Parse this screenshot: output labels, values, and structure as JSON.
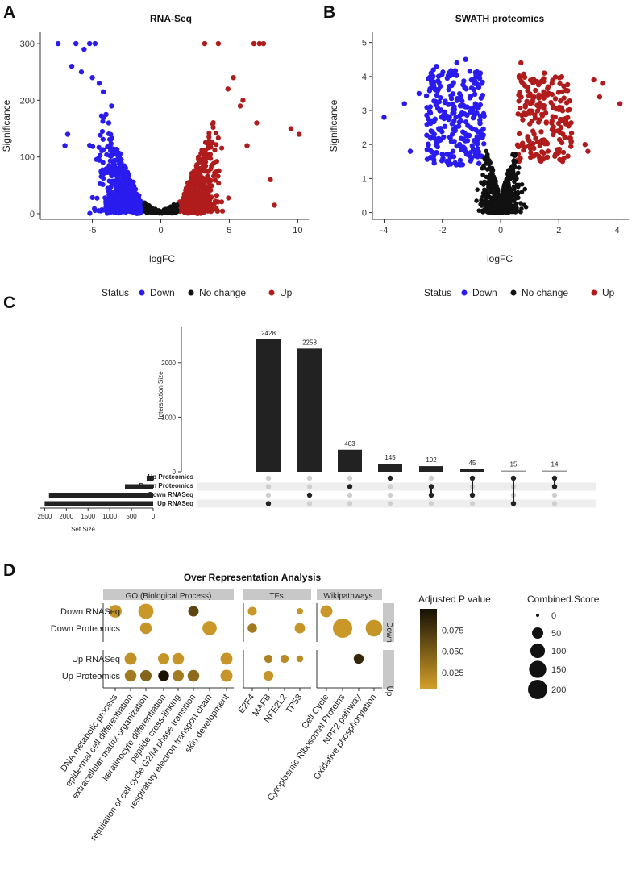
{
  "panels": {
    "A": {
      "label": "A"
    },
    "B": {
      "label": "B"
    },
    "C": {
      "label": "C"
    },
    "D": {
      "label": "D"
    }
  },
  "colors": {
    "down": "#2a1bef",
    "nochange": "#111111",
    "up": "#b01c1c"
  },
  "status_legend": {
    "title": "Status",
    "items": [
      "Down",
      "No change",
      "Up"
    ]
  },
  "chart_data": [
    {
      "id": "rnaseq",
      "type": "scatter",
      "title": "RNA-Seq",
      "xlabel": "logFC",
      "ylabel": "Significance",
      "xlim": [
        -8.8,
        10.8
      ],
      "ylim": [
        -10,
        320
      ],
      "xticks": [
        -5,
        0,
        5,
        10
      ],
      "yticks": [
        0,
        100,
        200,
        300
      ],
      "series": [
        {
          "name": "Down",
          "x": [
            -7.5,
            -6.2,
            -5.6,
            -5.2,
            -4.8,
            -6.5,
            -5.8,
            -5.0,
            -4.5,
            -4.2,
            -3.6,
            -3.8,
            -6.8,
            -7.0,
            -4.0
          ],
          "y": [
            300,
            300,
            290,
            300,
            300,
            260,
            250,
            240,
            230,
            215,
            190,
            160,
            140,
            120,
            175
          ]
        },
        {
          "name": "Up",
          "x": [
            3.2,
            4.2,
            6.8,
            7.2,
            7.5,
            9.5,
            10.1,
            8.3,
            6.3,
            5.8,
            4.9,
            7.0,
            8.0,
            6.0,
            5.3
          ],
          "y": [
            300,
            300,
            300,
            300,
            300,
            150,
            140,
            15,
            120,
            190,
            220,
            160,
            60,
            200,
            240
          ]
        }
      ]
    },
    {
      "id": "swath",
      "type": "scatter",
      "title": "SWATH proteomics",
      "xlabel": "logFC",
      "ylabel": "Significance",
      "xlim": [
        -4.4,
        4.4
      ],
      "ylim": [
        -0.2,
        5.3
      ],
      "xticks": [
        -4,
        -2,
        0,
        2,
        4
      ],
      "yticks": [
        0,
        1,
        2,
        3,
        4,
        5
      ],
      "series": [
        {
          "name": "Down",
          "x": [
            -4.0,
            -3.3,
            -3.1,
            -2.4,
            -1.2,
            -1.5,
            -2.2,
            -2.8
          ],
          "y": [
            2.8,
            3.2,
            1.8,
            1.6,
            4.5,
            4.4,
            4.3,
            3.5
          ]
        },
        {
          "name": "Up",
          "x": [
            0.7,
            1.5,
            3.2,
            3.5,
            4.1,
            3.4,
            2.9,
            1.8,
            3.0
          ],
          "y": [
            4.4,
            4.1,
            3.9,
            3.8,
            3.2,
            3.4,
            2.0,
            2.5,
            1.8
          ]
        }
      ]
    },
    {
      "id": "upset",
      "type": "bar",
      "ylabel": "Intersection Size",
      "set_size_label": "Set Size",
      "yticks": [
        0,
        1000,
        2000
      ],
      "values": [
        2428,
        2258,
        403,
        145,
        102,
        45,
        15,
        14
      ],
      "value_labels": [
        "2428",
        "2258",
        "403",
        "145",
        "102",
        "45",
        "15",
        "14"
      ],
      "sets": [
        "Up Proteomics",
        "Down Proteomics",
        "Down RNASeq",
        "Up RNASeq"
      ],
      "set_sizes": [
        150,
        650,
        2400,
        2500
      ],
      "set_ticks": [
        2500,
        2000,
        1500,
        1000,
        500,
        0
      ],
      "matrix": [
        [
          3
        ],
        [
          2
        ],
        [
          1
        ],
        [
          0
        ],
        [
          1,
          2
        ],
        [
          0,
          2
        ],
        [
          0,
          3
        ],
        [
          0,
          1
        ]
      ]
    },
    {
      "id": "ora",
      "type": "scatter",
      "title": "Over Representation Analysis",
      "groups": [
        "GO (Biological Process)",
        "TFs",
        "Wikipathways"
      ],
      "facets": [
        "Down",
        "Up"
      ],
      "rows": [
        "Down RNASeq",
        "Down Proteomics",
        "Up RNASeq",
        "Up Proteomics"
      ],
      "columns": [
        "DNA metabolic process",
        "epidermal cell differentiation",
        "extracellular matrix organization",
        "keratinocyte differentiation",
        "peptide cross-linking",
        "regulation of cell cycle G2/M phase transition",
        "respiratory electron transport chain",
        "skin development",
        "E2F4",
        "MAFB",
        "NFE2L2",
        "TP53",
        "Cell Cycle",
        "Cytoplasmic Ribosomal Proteins",
        "NRF2 pathway",
        "Oxidative phosphorylation"
      ],
      "points": [
        {
          "row": 0,
          "col": 0,
          "score": 70,
          "p": 0.012
        },
        {
          "row": 0,
          "col": 2,
          "score": 110,
          "p": 0.01
        },
        {
          "row": 0,
          "col": 5,
          "score": 40,
          "p": 0.065
        },
        {
          "row": 0,
          "col": 8,
          "score": 25,
          "p": 0.01
        },
        {
          "row": 0,
          "col": 11,
          "score": 8,
          "p": 0.012
        },
        {
          "row": 0,
          "col": 12,
          "score": 60,
          "p": 0.01
        },
        {
          "row": 1,
          "col": 2,
          "score": 55,
          "p": 0.012
        },
        {
          "row": 1,
          "col": 6,
          "score": 95,
          "p": 0.01
        },
        {
          "row": 1,
          "col": 8,
          "score": 28,
          "p": 0.03
        },
        {
          "row": 1,
          "col": 11,
          "score": 40,
          "p": 0.012
        },
        {
          "row": 1,
          "col": 13,
          "score": 200,
          "p": 0.01
        },
        {
          "row": 1,
          "col": 15,
          "score": 140,
          "p": 0.012
        },
        {
          "row": 2,
          "col": 1,
          "score": 60,
          "p": 0.015
        },
        {
          "row": 2,
          "col": 3,
          "score": 50,
          "p": 0.012
        },
        {
          "row": 2,
          "col": 4,
          "score": 55,
          "p": 0.012
        },
        {
          "row": 2,
          "col": 7,
          "score": 60,
          "p": 0.012
        },
        {
          "row": 2,
          "col": 9,
          "score": 20,
          "p": 0.025
        },
        {
          "row": 2,
          "col": 10,
          "score": 20,
          "p": 0.018
        },
        {
          "row": 2,
          "col": 11,
          "score": 10,
          "p": 0.018
        },
        {
          "row": 2,
          "col": 14,
          "score": 35,
          "p": 0.085
        },
        {
          "row": 3,
          "col": 1,
          "score": 55,
          "p": 0.03
        },
        {
          "row": 3,
          "col": 2,
          "score": 50,
          "p": 0.045
        },
        {
          "row": 3,
          "col": 3,
          "score": 45,
          "p": 0.098
        },
        {
          "row": 3,
          "col": 4,
          "score": 50,
          "p": 0.03
        },
        {
          "row": 3,
          "col": 5,
          "score": 55,
          "p": 0.04
        },
        {
          "row": 3,
          "col": 7,
          "score": 60,
          "p": 0.012
        },
        {
          "row": 3,
          "col": 9,
          "score": 35,
          "p": 0.012
        }
      ],
      "color_legend": {
        "title": "Adjusted P value",
        "ticks": [
          "0.075",
          "0.050",
          "0.025"
        ],
        "tick_values": [
          0.075,
          0.05,
          0.025
        ],
        "range": [
          0.005,
          0.1
        ]
      },
      "size_legend": {
        "title": "Combined.Score",
        "labels": [
          "0",
          "50",
          "100",
          "150",
          "200"
        ],
        "values": [
          0,
          50,
          100,
          150,
          200
        ]
      }
    }
  ]
}
